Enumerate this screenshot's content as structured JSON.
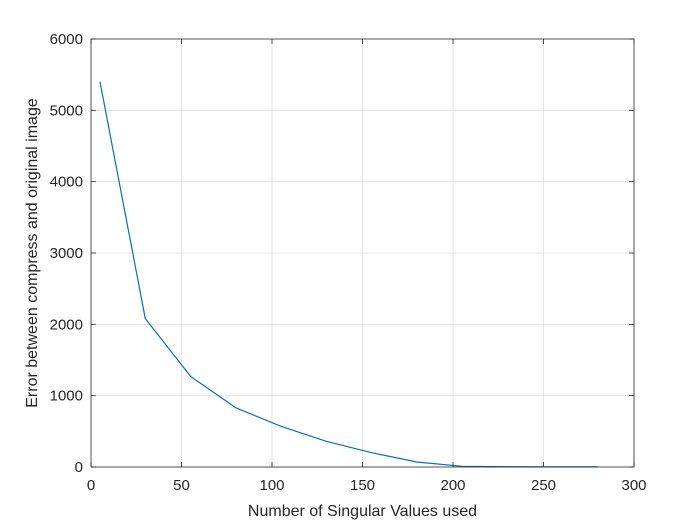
{
  "chart_data": {
    "type": "line",
    "title": "",
    "xlabel": "Number of Singular Values used",
    "ylabel": "Error between compress and original image",
    "xlim": [
      0,
      300
    ],
    "ylim": [
      0,
      6000
    ],
    "xticks": [
      0,
      50,
      100,
      150,
      200,
      250,
      300
    ],
    "yticks": [
      0,
      1000,
      2000,
      3000,
      4000,
      5000,
      6000
    ],
    "grid": true,
    "box": true,
    "series": [
      {
        "color": "#0072BD",
        "x": [
          5,
          30,
          55,
          80,
          105,
          130,
          155,
          180,
          205,
          230,
          255,
          280
        ],
        "y": [
          5400,
          2080,
          1270,
          830,
          570,
          360,
          200,
          70,
          10,
          4,
          2,
          1
        ]
      }
    ]
  }
}
